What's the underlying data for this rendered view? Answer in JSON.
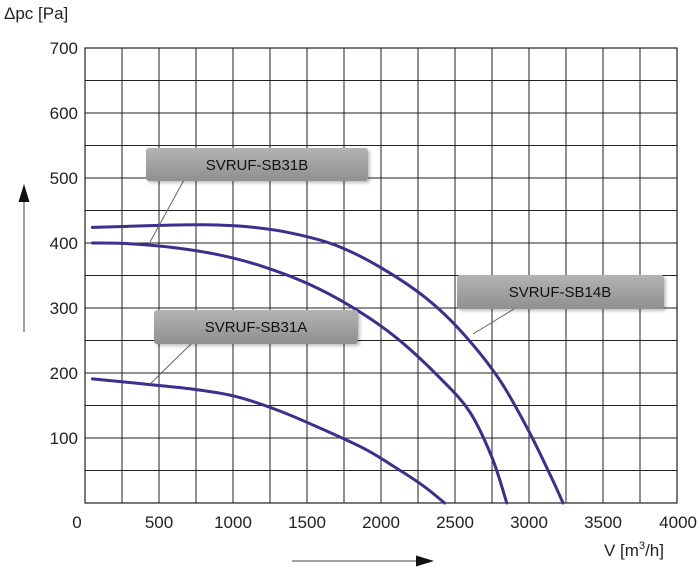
{
  "chart_data": {
    "type": "line",
    "title": "",
    "xlabel": "V [m³/h]",
    "ylabel": "Δpc [Pa]",
    "xlim": [
      0,
      4000
    ],
    "ylim": [
      0,
      700
    ],
    "xticks": [
      0,
      500,
      1000,
      1500,
      2000,
      2500,
      3000,
      3500,
      4000
    ],
    "yticks": [
      100,
      200,
      300,
      400,
      500,
      600,
      700
    ],
    "x_minor_step": 250,
    "y_minor_step": 50,
    "grid": true,
    "line_color": "#3b2f8f",
    "series": [
      {
        "name": "SVRUF-SB14B",
        "points": [
          [
            50,
            424
          ],
          [
            500,
            427
          ],
          [
            800,
            428
          ],
          [
            1100,
            425
          ],
          [
            1400,
            415
          ],
          [
            1700,
            396
          ],
          [
            2000,
            362
          ],
          [
            2300,
            316
          ],
          [
            2550,
            262
          ],
          [
            2800,
            190
          ],
          [
            3000,
            110
          ],
          [
            3150,
            40
          ],
          [
            3230,
            0
          ]
        ]
      },
      {
        "name": "SVRUF-SB31B",
        "points": [
          [
            50,
            400
          ],
          [
            300,
            399
          ],
          [
            600,
            393
          ],
          [
            900,
            382
          ],
          [
            1200,
            364
          ],
          [
            1500,
            338
          ],
          [
            1800,
            302
          ],
          [
            2100,
            255
          ],
          [
            2400,
            192
          ],
          [
            2600,
            140
          ],
          [
            2750,
            70
          ],
          [
            2850,
            0
          ]
        ]
      },
      {
        "name": "SVRUF-SB31A",
        "points": [
          [
            50,
            191
          ],
          [
            400,
            183
          ],
          [
            700,
            176
          ],
          [
            1000,
            165
          ],
          [
            1300,
            143
          ],
          [
            1600,
            114
          ],
          [
            1900,
            82
          ],
          [
            2150,
            47
          ],
          [
            2300,
            24
          ],
          [
            2430,
            0
          ]
        ]
      }
    ],
    "callouts": [
      {
        "label": "SVRUF-SB31B",
        "series": "SVRUF-SB31B"
      },
      {
        "label": "SVRUF-SB14B",
        "series": "SVRUF-SB14B"
      },
      {
        "label": "SVRUF-SB31A",
        "series": "SVRUF-SB31A"
      }
    ]
  }
}
